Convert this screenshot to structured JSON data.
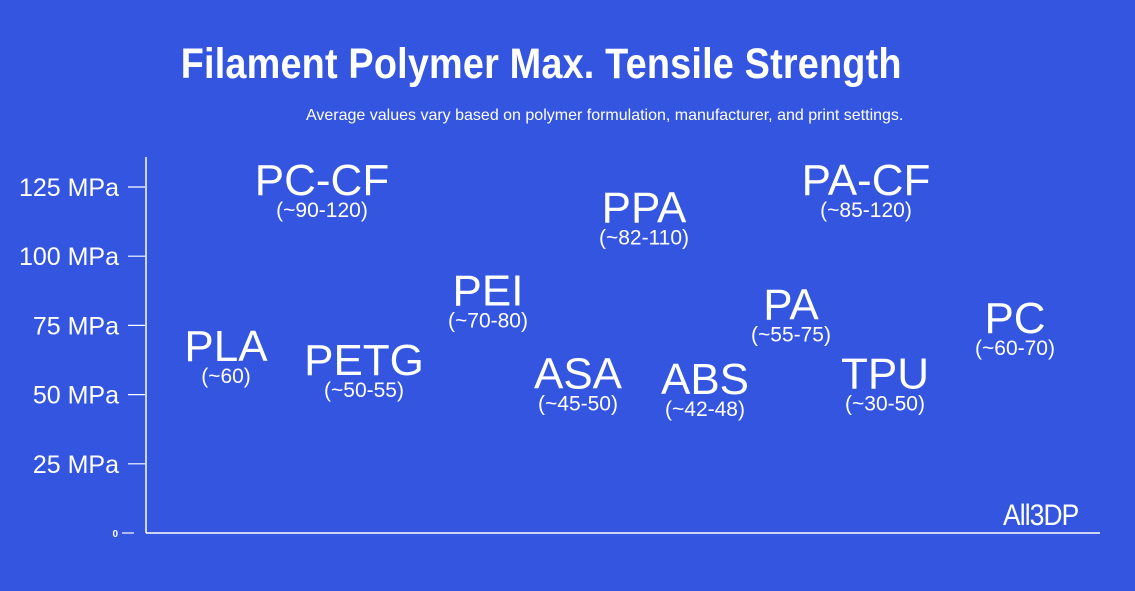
{
  "colors": {
    "background": "#3355e0",
    "foreground": "#ffffff"
  },
  "brand": "All3DP",
  "chart_data": {
    "type": "scatter",
    "title": "Filament Polymer Max. Tensile Strength",
    "subtitle": "Average values vary based on polymer formulation, manufacturer, and print settings.",
    "ylim": [
      0,
      125
    ],
    "y_ticks": [
      {
        "value": 125,
        "label": "125 MPa"
      },
      {
        "value": 100,
        "label": "100 MPa"
      },
      {
        "value": 75,
        "label": "75 MPa"
      },
      {
        "value": 50,
        "label": "50 MPa"
      },
      {
        "value": 25,
        "label": "25 MPa"
      },
      {
        "value": 0,
        "label": "0"
      }
    ],
    "grid": false,
    "points": [
      {
        "name": "PLA",
        "range": "(~60)",
        "y": 60
      },
      {
        "name": "PC-CF",
        "range": "(~90-120)",
        "y": 120
      },
      {
        "name": "PETG",
        "range": "(~50-55)",
        "y": 55
      },
      {
        "name": "PEI",
        "range": "(~70-80)",
        "y": 80
      },
      {
        "name": "ASA",
        "range": "(~45-50)",
        "y": 50
      },
      {
        "name": "PPA",
        "range": "(~82-110)",
        "y": 110
      },
      {
        "name": "ABS",
        "range": "(~42-48)",
        "y": 48
      },
      {
        "name": "PA",
        "range": "(~55-75)",
        "y": 75
      },
      {
        "name": "PA-CF",
        "range": "(~85-120)",
        "y": 120
      },
      {
        "name": "TPU",
        "range": "(~30-50)",
        "y": 50
      },
      {
        "name": "PC",
        "range": "(~60-70)",
        "y": 70
      }
    ]
  }
}
